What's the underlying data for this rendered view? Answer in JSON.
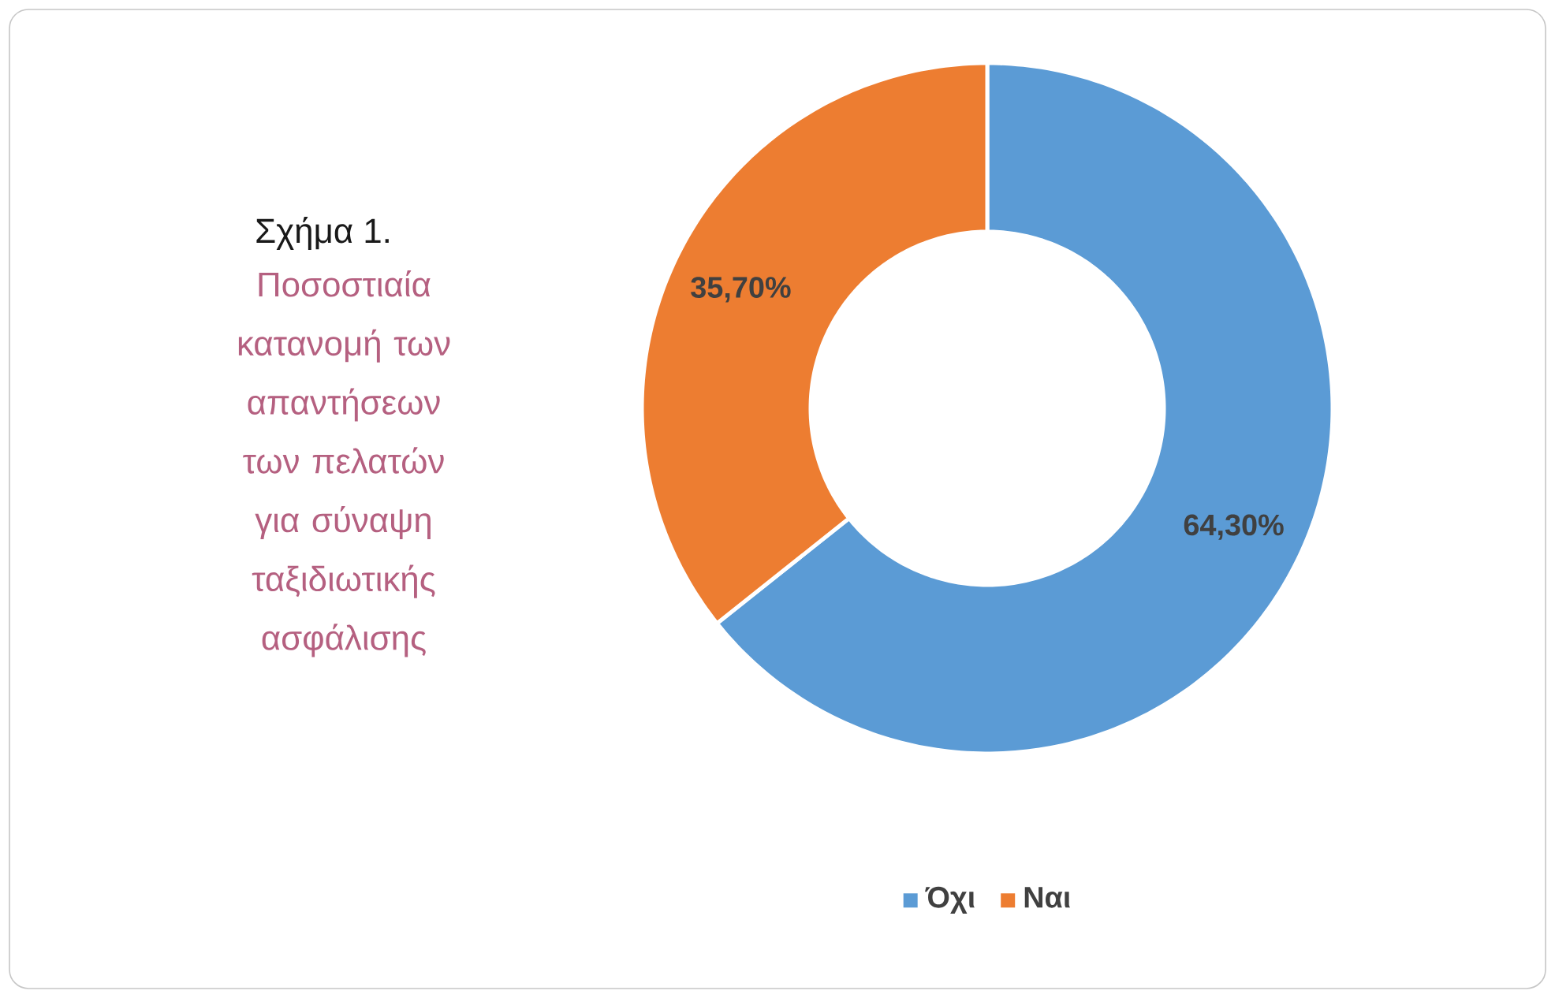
{
  "chart_data": {
    "type": "donut",
    "title": "Σχήμα 1.",
    "subtitle": "Ποσοστιαία κατανομή των απαντήσεων των πελατών για σύναψη ταξιδιωτικής ασφάλισης",
    "categories": [
      "Όχι",
      "Ναι"
    ],
    "values": [
      64.3,
      35.7
    ],
    "colors": [
      "#5b9bd5",
      "#ed7d31"
    ],
    "value_labels": [
      "64,30%",
      "35,70%"
    ],
    "legend": "bottom"
  }
}
